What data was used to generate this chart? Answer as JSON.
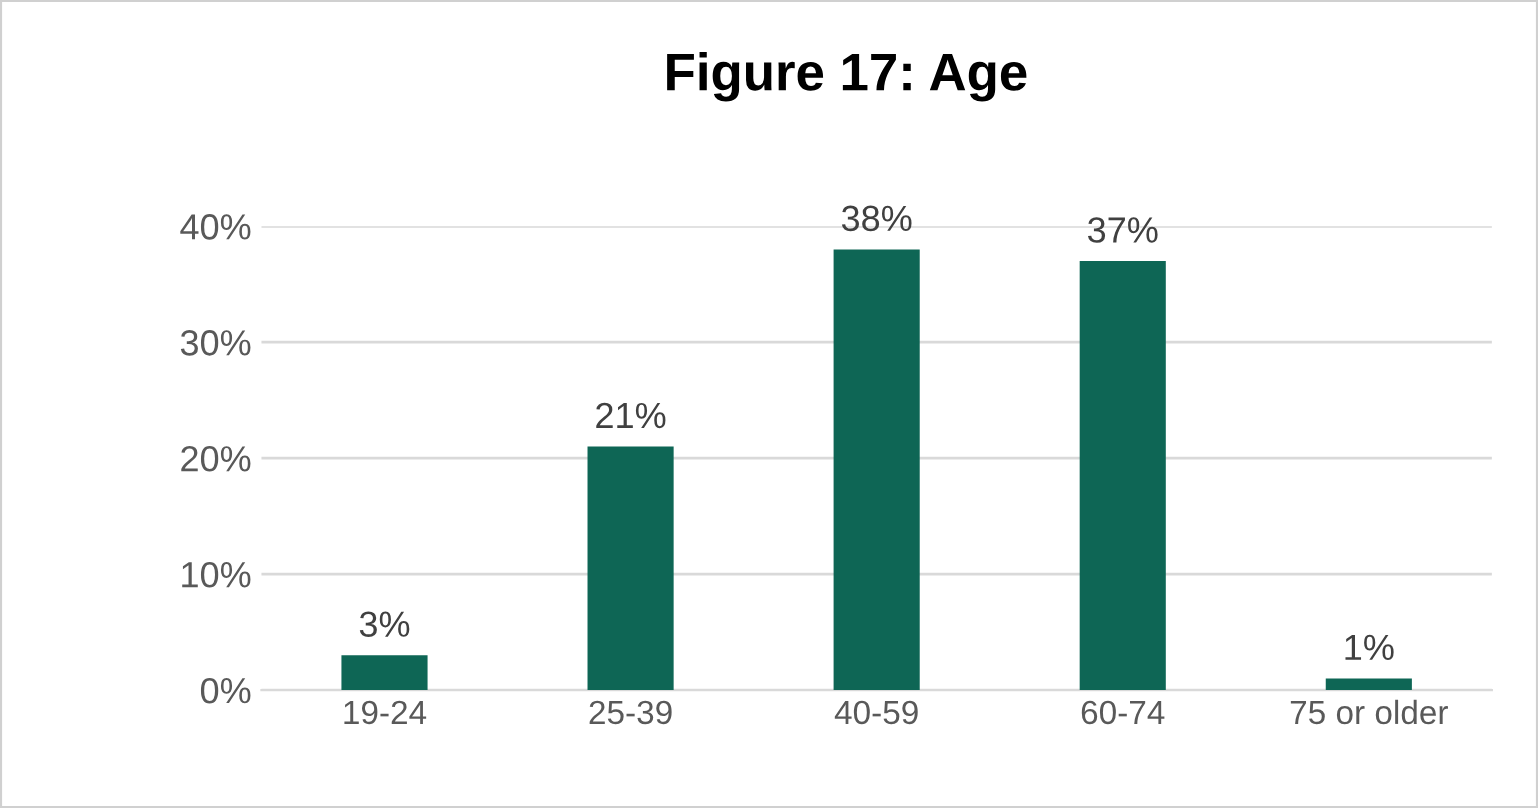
{
  "chart_data": {
    "type": "bar",
    "title": "Figure 17: Age",
    "categories": [
      "19-24",
      "25-39",
      "40-59",
      "60-74",
      "75 or older"
    ],
    "values": [
      3,
      21,
      38,
      37,
      1
    ],
    "value_labels": [
      "3%",
      "21%",
      "38%",
      "37%",
      "1%"
    ],
    "color": "#0e6655",
    "ylim": [
      0,
      40
    ],
    "yticks": [
      {
        "value": 0,
        "label": "0%"
      },
      {
        "value": 10,
        "label": "10%"
      },
      {
        "value": 20,
        "label": "20%"
      },
      {
        "value": 30,
        "label": "30%"
      },
      {
        "value": 40,
        "label": "40%"
      }
    ],
    "grid": "y",
    "legend": false
  }
}
